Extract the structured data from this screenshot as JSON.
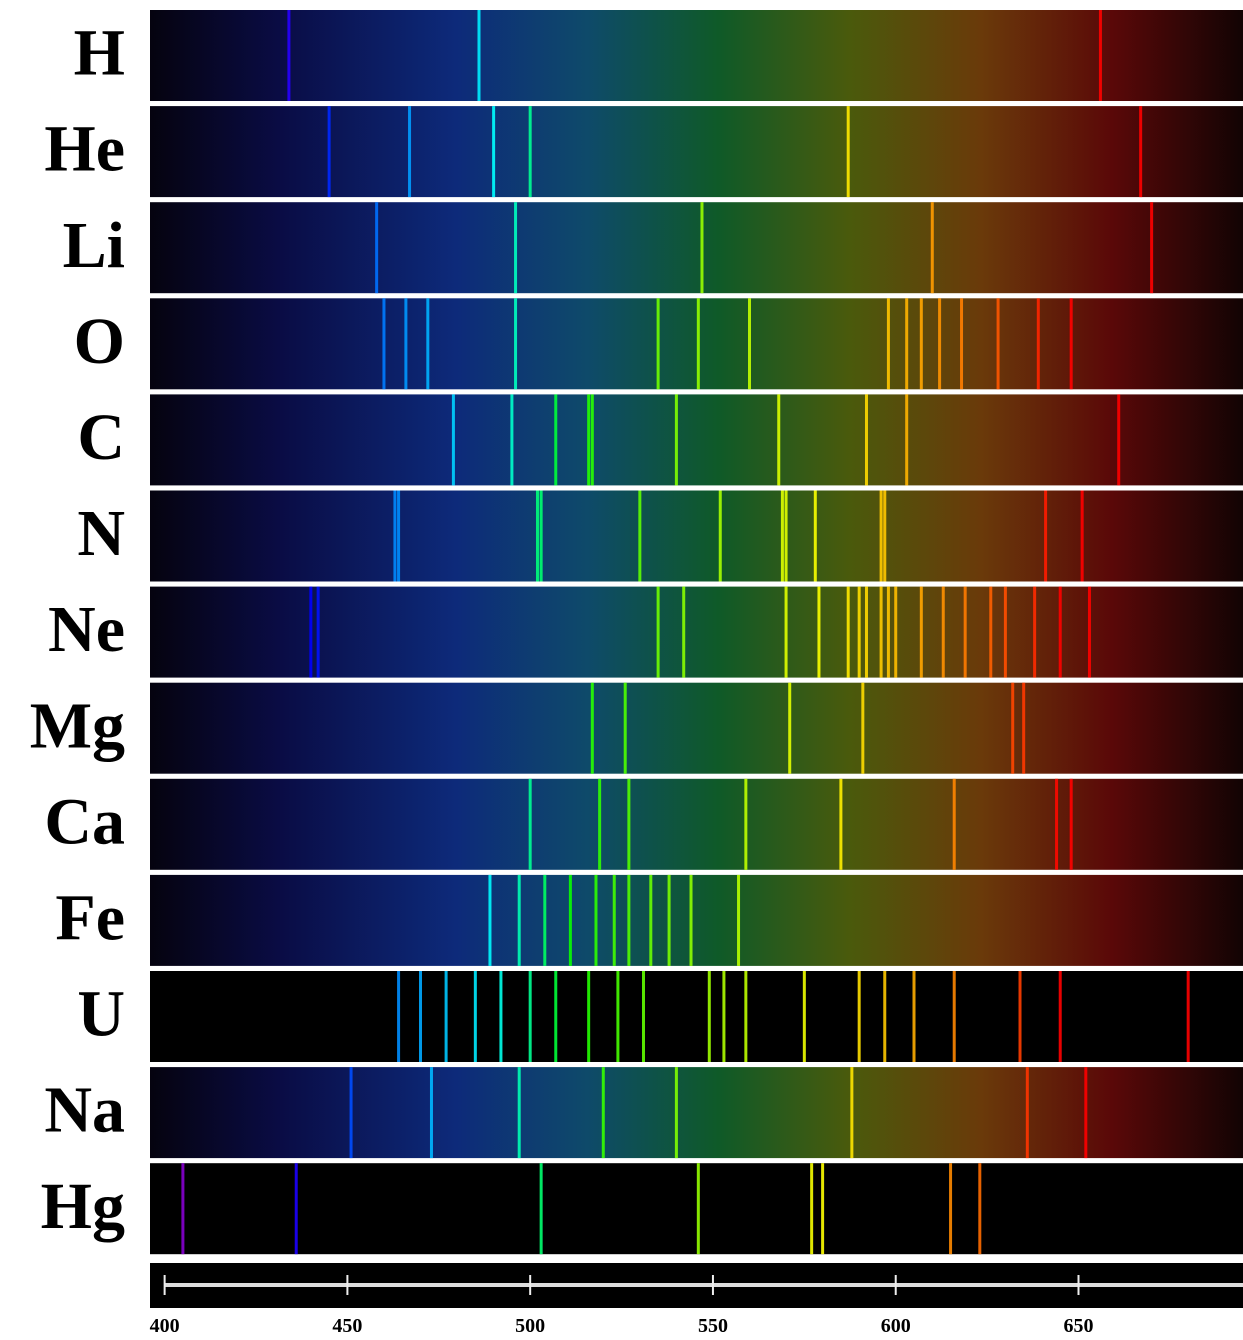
{
  "elements": [
    {
      "label": "H",
      "lines": [
        434,
        486,
        656
      ]
    },
    {
      "label": "He",
      "lines": [
        445,
        467,
        490,
        500,
        587,
        667
      ]
    },
    {
      "label": "Li",
      "lines": [
        458,
        496,
        547,
        610,
        670
      ]
    },
    {
      "label": "O",
      "lines": [
        460,
        466,
        472,
        496,
        535,
        546,
        560,
        598,
        603,
        607,
        612,
        618,
        628,
        639,
        648
      ]
    },
    {
      "label": "C",
      "lines": [
        479,
        495,
        507,
        516,
        517,
        540,
        568,
        592,
        603,
        661
      ]
    },
    {
      "label": "N",
      "lines": [
        463,
        464,
        502,
        503,
        530,
        552,
        569,
        570,
        578,
        596,
        597,
        641,
        651
      ]
    },
    {
      "label": "Ne",
      "lines": [
        440,
        442,
        535,
        542,
        570,
        579,
        587,
        590,
        592,
        596,
        598,
        600,
        607,
        613,
        619,
        626,
        630,
        638,
        645,
        653
      ]
    },
    {
      "label": "Mg",
      "lines": [
        517,
        526,
        571,
        591,
        632,
        635
      ]
    },
    {
      "label": "Ca",
      "lines": [
        500,
        519,
        527,
        559,
        585,
        616,
        644,
        648
      ]
    },
    {
      "label": "Fe",
      "lines": [
        489,
        497,
        504,
        511,
        518,
        523,
        527,
        533,
        538,
        544,
        557
      ]
    },
    {
      "label": "U",
      "lines": [
        464,
        470,
        477,
        485,
        492,
        500,
        507,
        516,
        524,
        531,
        549,
        553,
        559,
        575,
        590,
        597,
        605,
        616,
        634,
        645,
        680
      ]
    },
    {
      "label": "Na",
      "lines": [
        451,
        473,
        497,
        520,
        540,
        588,
        636,
        652
      ]
    },
    {
      "label": "Hg",
      "lines": [
        405,
        436,
        503,
        546,
        577,
        580,
        615,
        623
      ]
    }
  ],
  "axis": {
    "xlim": [
      396,
      695
    ],
    "xticks": [
      400,
      450,
      500,
      550,
      600,
      650
    ]
  }
}
